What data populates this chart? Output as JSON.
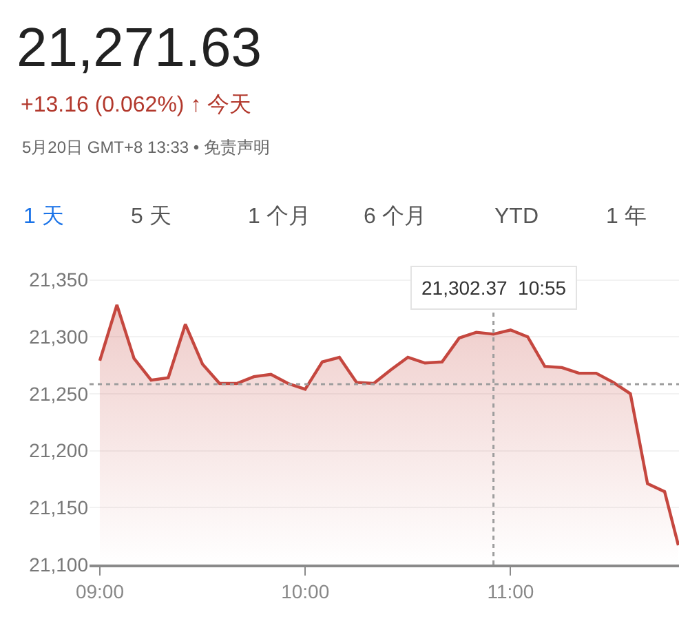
{
  "chart_data": {
    "type": "area",
    "title": "21,271.63",
    "subtitle": "+13.16 (0.062%) ↑ 今天",
    "annotations": [
      "5月20日 GMT+8 13:33 • 免责声明",
      "1 天",
      "5 天",
      "1 个月",
      "6 个月",
      "YTD",
      "1 年",
      {
        "text": "21,302.37  10:55",
        "x": 10.9167,
        "y": 21302.37
      }
    ],
    "x": [
      9,
      9.0833,
      9.1667,
      9.25,
      9.3333,
      9.4167,
      9.5,
      9.5833,
      9.6667,
      9.75,
      9.8333,
      9.9167,
      10,
      10.0833,
      10.1667,
      10.25,
      10.3333,
      10.4167,
      10.5,
      10.5833,
      10.6667,
      10.75,
      10.8333,
      10.9167,
      11,
      11.0833,
      11.1667,
      11.25,
      11.3333,
      11.4167,
      11.5,
      11.5833,
      11.6667,
      11.75,
      11.8167
    ],
    "series": [
      {
        "color": "#c5473f",
        "values": [
          21279,
          21328,
          21281,
          21262,
          21264,
          21311,
          21276,
          21259,
          21259,
          21265,
          21267,
          21259,
          21254,
          21278,
          21282,
          21260,
          21259,
          21271,
          21282,
          21277,
          21278,
          21299,
          21304,
          21302.37,
          21306,
          21300,
          21274,
          21273,
          21268,
          21268,
          21260,
          21250,
          21171,
          21164,
          21117
        ]
      }
    ],
    "xlim": [
      8.95,
      11.82
    ],
    "xticks": [
      {
        "value": 9,
        "label": "09:00"
      },
      {
        "value": 10,
        "label": "10:00"
      },
      {
        "value": 11,
        "label": "11:00"
      }
    ],
    "ylim": [
      21100,
      21360
    ],
    "yticks": [
      {
        "value": 21100,
        "label": "21,100"
      },
      {
        "value": 21150,
        "label": "21,150"
      },
      {
        "value": 21200,
        "label": "21,200"
      },
      {
        "value": 21250,
        "label": "21,250"
      },
      {
        "value": 21300,
        "label": "21,300"
      },
      {
        "value": 21350,
        "label": "21,350"
      }
    ],
    "ref_lines": [
      {
        "axis": "y",
        "value": 21258.47,
        "color": "#9e9e9e",
        "line_style": "dotted"
      },
      {
        "axis": "x",
        "value": 10.9167,
        "color": "#9e9e9e",
        "line_style": "dotted"
      }
    ],
    "grid": "y",
    "marker": "none",
    "line_style": "solid"
  }
}
